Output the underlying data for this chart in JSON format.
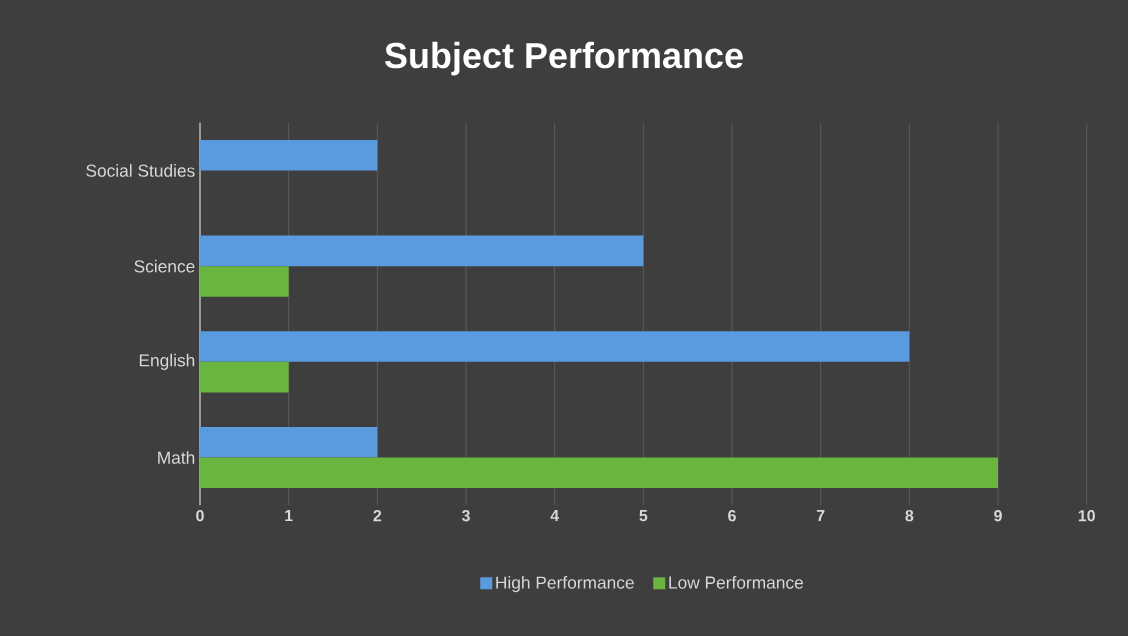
{
  "chart_data": {
    "type": "bar",
    "orientation": "horizontal",
    "title": "Subject Performance",
    "categories": [
      "Social Studies",
      "Science",
      "English",
      "Math"
    ],
    "series": [
      {
        "name": "High Performance",
        "color": "#5a9be0",
        "values": [
          2,
          5,
          8,
          2
        ]
      },
      {
        "name": "Low Performance",
        "color": "#6ab53f",
        "values": [
          null,
          1,
          1,
          9
        ]
      }
    ],
    "xlim": [
      0,
      10
    ],
    "xticks": [
      0,
      1,
      2,
      3,
      4,
      5,
      6,
      7,
      8,
      9,
      10
    ],
    "grid": "x",
    "legend": "bottom"
  }
}
